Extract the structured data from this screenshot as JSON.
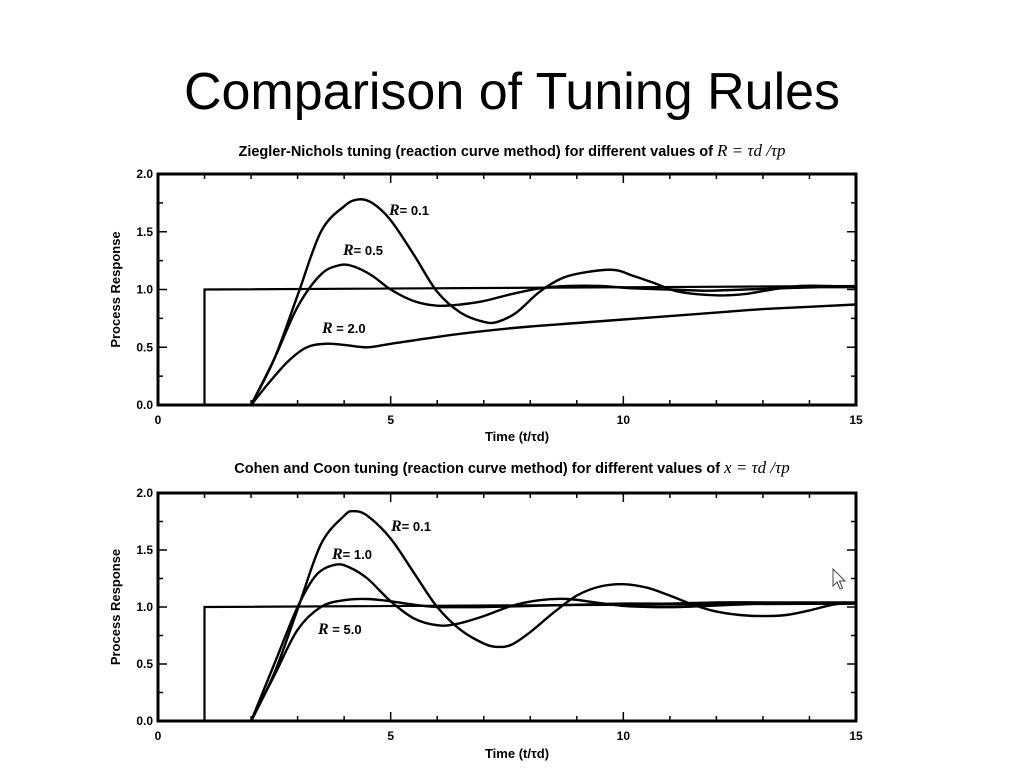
{
  "slide": {
    "title": "Comparison of Tuning Rules"
  },
  "panels": [
    {
      "title_text": "Ziegler-Nichols tuning (reaction curve method) for different values of",
      "title_math": "R = τd /τp"
    },
    {
      "title_text": "Cohen and Coon tuning (reaction curve method) for different values of",
      "title_math": "x = τd /τp"
    }
  ],
  "chart_data": [
    {
      "type": "line",
      "title": "Ziegler-Nichols tuning (reaction curve method) for different values of R = τd /τp",
      "xlabel": "Time (t/τd)",
      "ylabel": "Process Response",
      "xlim": [
        0,
        15
      ],
      "ylim": [
        0.0,
        2.0
      ],
      "x_ticks": [
        "0",
        "5",
        "10",
        "15"
      ],
      "y_ticks": [
        "0.0",
        "0.5",
        "1.0",
        "1.5",
        "2.0"
      ],
      "grid": false,
      "setpoint": {
        "x": [
          0,
          1,
          1,
          15
        ],
        "y": [
          0,
          0,
          1.0,
          1.03
        ]
      },
      "series": [
        {
          "name": "R= 0.1",
          "x": [
            0,
            2.0,
            2.5,
            3.0,
            3.5,
            4.0,
            4.3,
            4.6,
            5.0,
            5.5,
            6.0,
            6.5,
            7.0,
            7.3,
            7.7,
            8.2,
            8.7,
            9.2,
            9.8,
            10.2,
            10.7,
            11.2,
            12.0,
            12.6,
            13.2,
            13.8,
            14.4,
            15.0
          ],
          "y": [
            0,
            0,
            0.4,
            0.95,
            1.5,
            1.72,
            1.78,
            1.75,
            1.6,
            1.3,
            0.98,
            0.8,
            0.72,
            0.72,
            0.8,
            0.98,
            1.1,
            1.15,
            1.17,
            1.12,
            1.05,
            0.98,
            0.95,
            0.96,
            1.0,
            1.03,
            1.03,
            1.02
          ]
        },
        {
          "name": "R= 0.5",
          "x": [
            0,
            2.0,
            2.5,
            3.0,
            3.5,
            3.9,
            4.2,
            4.6,
            5.0,
            5.5,
            6.0,
            6.5,
            7.0,
            7.6,
            8.2,
            8.8,
            9.5,
            10.2,
            11.0,
            11.8,
            12.6,
            13.4,
            14.2,
            15.0
          ],
          "y": [
            0,
            0,
            0.4,
            0.85,
            1.13,
            1.21,
            1.2,
            1.12,
            1.0,
            0.9,
            0.86,
            0.87,
            0.9,
            0.96,
            1.01,
            1.03,
            1.03,
            1.01,
            1.0,
            0.99,
            1.0,
            1.01,
            1.02,
            1.02
          ]
        },
        {
          "name": "R = 2.0",
          "x": [
            0,
            2.0,
            2.4,
            2.8,
            3.2,
            3.6,
            4.0,
            4.5,
            5.0,
            6.0,
            7.0,
            8.0,
            9.0,
            10.0,
            11.0,
            12.0,
            13.0,
            14.0,
            15.0
          ],
          "y": [
            0,
            0,
            0.2,
            0.38,
            0.5,
            0.53,
            0.52,
            0.5,
            0.53,
            0.59,
            0.64,
            0.68,
            0.71,
            0.74,
            0.77,
            0.8,
            0.83,
            0.85,
            0.87
          ]
        }
      ]
    },
    {
      "type": "line",
      "title": "Cohen and Coon tuning (reaction curve method) for different values of x = τd /τp",
      "xlabel": "Time (t/τd)",
      "ylabel": "Process Response",
      "xlim": [
        0,
        15
      ],
      "ylim": [
        0.0,
        2.0
      ],
      "x_ticks": [
        "0",
        "5",
        "10",
        "15"
      ],
      "y_ticks": [
        "0.0",
        "0.5",
        "1.0",
        "1.5",
        "2.0"
      ],
      "grid": false,
      "setpoint": {
        "x": [
          0,
          1,
          1,
          15
        ],
        "y": [
          0,
          0,
          1.0,
          1.03
        ]
      },
      "series": [
        {
          "name": "R= 0.1",
          "x": [
            0,
            2.0,
            2.5,
            3.0,
            3.5,
            4.0,
            4.2,
            4.5,
            5.0,
            5.5,
            6.0,
            6.5,
            7.0,
            7.3,
            7.6,
            8.0,
            8.5,
            9.0,
            9.5,
            10.0,
            10.5,
            11.0,
            11.5,
            12.0,
            12.5,
            13.0,
            13.5,
            14.0,
            14.5,
            15.0
          ],
          "y": [
            0,
            0,
            0.42,
            0.98,
            1.55,
            1.8,
            1.84,
            1.8,
            1.6,
            1.3,
            1.0,
            0.8,
            0.68,
            0.65,
            0.67,
            0.78,
            0.95,
            1.1,
            1.18,
            1.2,
            1.17,
            1.1,
            1.02,
            0.96,
            0.93,
            0.92,
            0.93,
            0.97,
            1.02,
            1.04
          ]
        },
        {
          "name": "R= 1.0",
          "x": [
            0,
            2.0,
            2.5,
            3.0,
            3.4,
            3.8,
            4.1,
            4.5,
            5.0,
            5.5,
            6.0,
            6.4,
            7.0,
            7.6,
            8.2,
            8.8,
            9.4,
            10.0,
            10.6,
            11.2,
            11.8,
            12.4,
            13.0,
            13.6,
            14.2,
            15.0
          ],
          "y": [
            0,
            0,
            0.5,
            1.0,
            1.28,
            1.37,
            1.35,
            1.25,
            1.05,
            0.9,
            0.84,
            0.85,
            0.92,
            1.01,
            1.06,
            1.07,
            1.04,
            1.01,
            1.0,
            1.0,
            1.01,
            1.02,
            1.03,
            1.03,
            1.03,
            1.03
          ]
        },
        {
          "name": "R = 5.0",
          "x": [
            0,
            2.0,
            2.5,
            3.0,
            3.5,
            4.0,
            4.5,
            5.0,
            5.5,
            6.0,
            7.0,
            8.0,
            9.0,
            10.0,
            11.0,
            12.0,
            13.0,
            14.0,
            15.0
          ],
          "y": [
            0,
            0,
            0.4,
            0.8,
            1.0,
            1.06,
            1.07,
            1.05,
            1.02,
            1.0,
            1.0,
            1.01,
            1.02,
            1.03,
            1.03,
            1.04,
            1.04,
            1.04,
            1.04
          ]
        }
      ]
    }
  ]
}
